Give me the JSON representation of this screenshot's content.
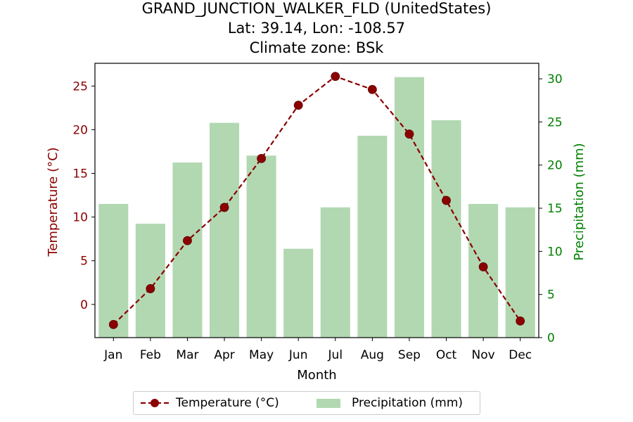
{
  "title": {
    "line1": "GRAND_JUNCTION_WALKER_FLD (UnitedStates)",
    "line2": "Lat: 39.14, Lon: -108.57",
    "line3": "Climate zone: BSk"
  },
  "colors": {
    "temperature": "#8b0000",
    "precipitation": "#b2d8b2",
    "precip_axis": "#008000",
    "marker_fill": "#8b0000"
  },
  "chart_data": {
    "type": "bar+line",
    "categories": [
      "Jan",
      "Feb",
      "Mar",
      "Apr",
      "May",
      "Jun",
      "Jul",
      "Aug",
      "Sep",
      "Oct",
      "Nov",
      "Dec"
    ],
    "xlabel": "Month",
    "series": [
      {
        "name": "Temperature (°C)",
        "type": "line",
        "axis": "left",
        "values": [
          -2.3,
          1.8,
          7.3,
          11.1,
          16.7,
          22.8,
          26.1,
          24.6,
          19.5,
          11.9,
          4.3,
          -1.9
        ]
      },
      {
        "name": "Precipitation (mm)",
        "type": "bar",
        "axis": "right",
        "values": [
          15.5,
          13.2,
          20.3,
          24.9,
          21.1,
          10.3,
          15.1,
          23.4,
          30.2,
          25.2,
          15.5,
          15.1
        ]
      }
    ],
    "ylabel_left": "Temperature (°C)",
    "ylabel_right": "Precipitation (mm)",
    "ylim_left": [
      -3.8,
      27.6
    ],
    "ylim_right": [
      0,
      31.8
    ],
    "yticks_left": [
      0,
      5,
      10,
      15,
      20,
      25
    ],
    "yticks_right": [
      0,
      5,
      10,
      15,
      20,
      25,
      30
    ],
    "grid": false,
    "legend_position": "bottom-center"
  }
}
